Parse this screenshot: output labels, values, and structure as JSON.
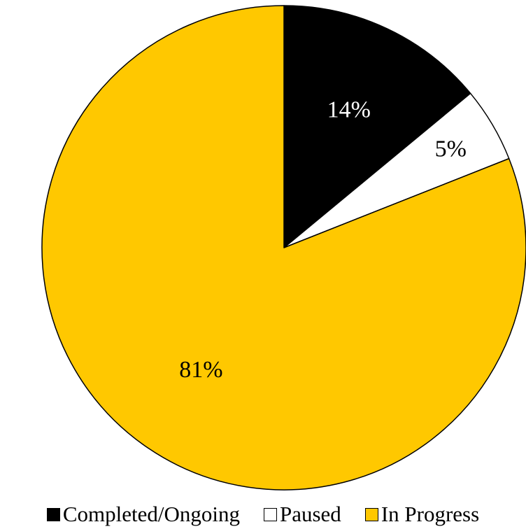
{
  "chart_data": {
    "type": "pie",
    "title": "",
    "start_angle_deg": 90,
    "direction": "clockwise",
    "legend_position": "bottom",
    "slices": [
      {
        "label": "Completed/Ongoing",
        "value": 14,
        "display": "14%",
        "color": "#000000",
        "label_color": "#ffffff"
      },
      {
        "label": "Paused",
        "value": 5,
        "display": "5%",
        "color": "#ffffff",
        "label_color": "#000000"
      },
      {
        "label": "In Progress",
        "value": 81,
        "display": "81%",
        "color": "#ffc800",
        "label_color": "#000000"
      }
    ]
  }
}
